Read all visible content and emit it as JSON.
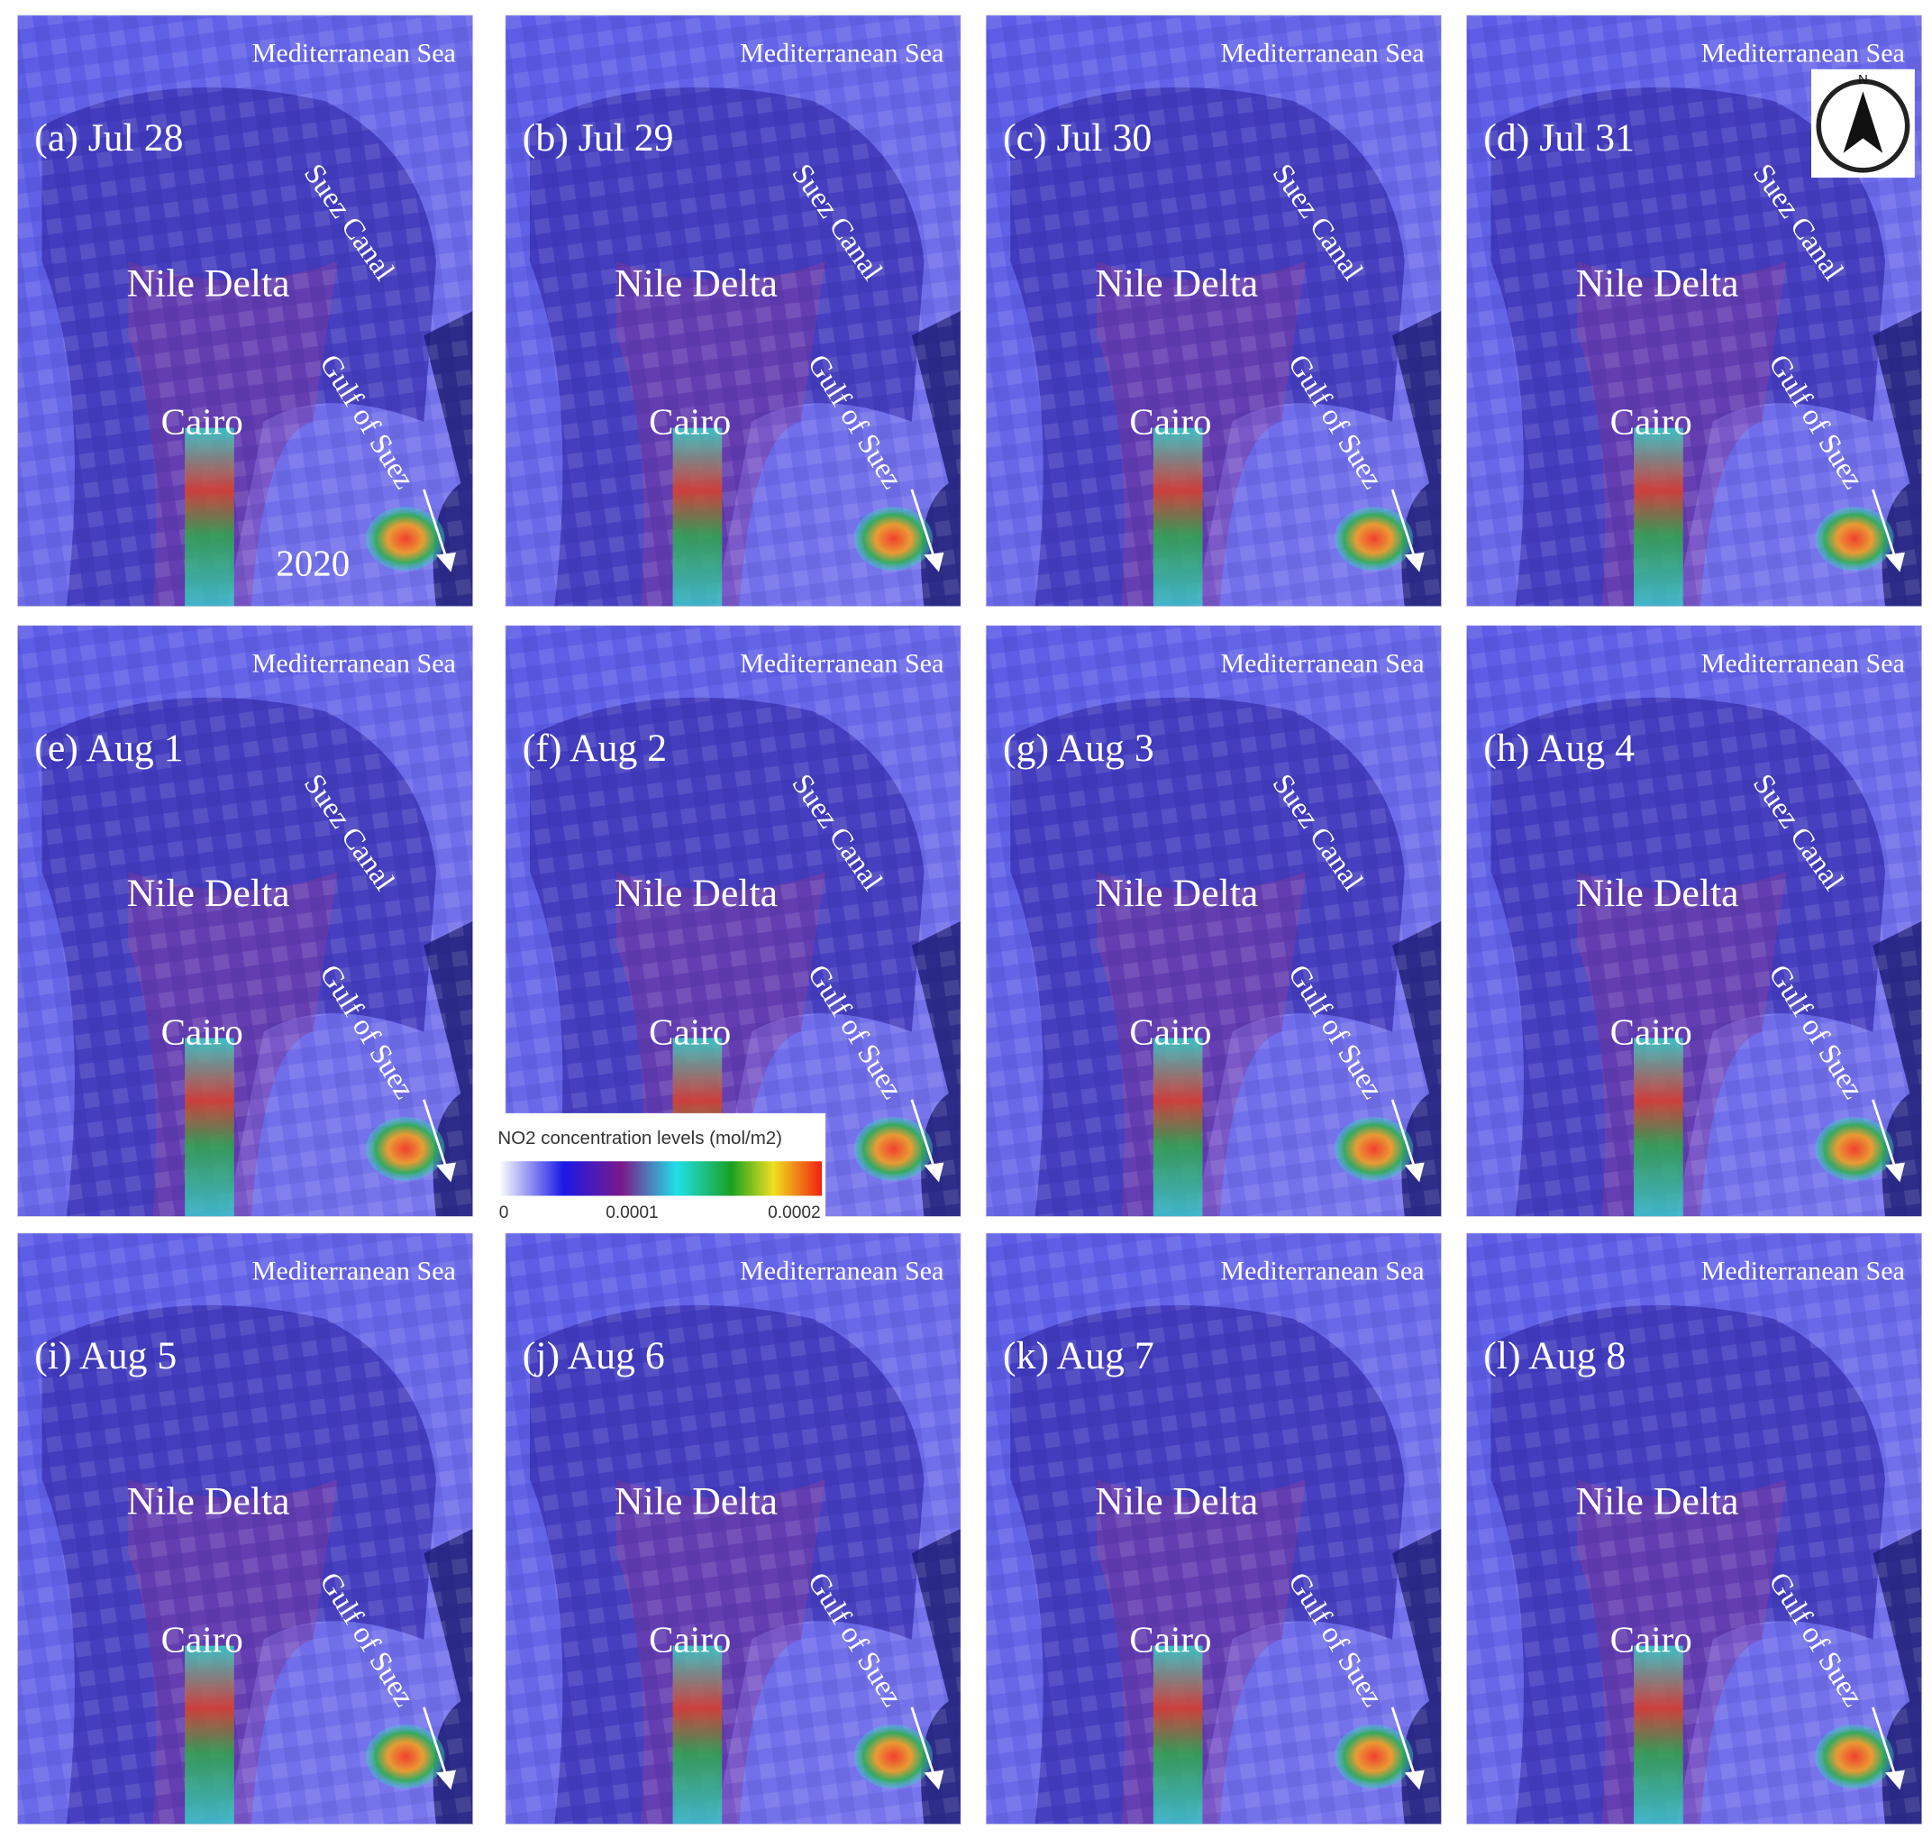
{
  "panels": [
    {
      "label": "(a) Jul 28",
      "sea": "Mediterranean Sea",
      "delta": "Nile Delta",
      "canal": "Suez Canal",
      "cairo": "Cairo",
      "gulf": "Gulf of Suez",
      "year": "2020"
    },
    {
      "label": "(b) Jul 29",
      "sea": "Mediterranean Sea",
      "delta": "Nile Delta",
      "canal": "Suez Canal",
      "cairo": "Cairo",
      "gulf": "Gulf of Suez"
    },
    {
      "label": "(c) Jul 30",
      "sea": "Mediterranean Sea",
      "delta": "Nile Delta",
      "canal": "Suez Canal",
      "cairo": "Cairo",
      "gulf": "Gulf of Suez"
    },
    {
      "label": "(d) Jul 31",
      "sea": "Mediterranean Sea",
      "delta": "Nile Delta",
      "canal": "Suez Canal",
      "cairo": "Cairo",
      "gulf": "Gulf of Suez",
      "compass": "N"
    },
    {
      "label": "(e) Aug 1",
      "sea": "Mediterranean Sea",
      "delta": "Nile Delta",
      "canal": "Suez Canal",
      "cairo": "Cairo",
      "gulf": "Gulf of Suez"
    },
    {
      "label": "(f) Aug 2",
      "sea": "Mediterranean Sea",
      "delta": "Nile Delta",
      "canal": "Suez Canal",
      "cairo": "Cairo",
      "gulf": "Gulf of Suez"
    },
    {
      "label": "(g) Aug 3",
      "sea": "Mediterranean Sea",
      "delta": "Nile Delta",
      "canal": "Suez Canal",
      "cairo": "Cairo",
      "gulf": "Gulf of Suez"
    },
    {
      "label": "(h) Aug 4",
      "sea": "Mediterranean Sea",
      "delta": "Nile Delta",
      "canal": "Suez Canal",
      "cairo": "Cairo",
      "gulf": "Gulf of Suez"
    },
    {
      "label": "(i) Aug 5",
      "sea": "Mediterranean Sea",
      "delta": "Nile Delta",
      "cairo": "Cairo",
      "gulf": "Gulf of Suez"
    },
    {
      "label": "(j) Aug 6",
      "sea": "Mediterranean Sea",
      "delta": "Nile Delta",
      "cairo": "Cairo",
      "gulf": "Gulf of Suez"
    },
    {
      "label": "(k) Aug 7",
      "sea": "Mediterranean Sea",
      "delta": "Nile Delta",
      "cairo": "Cairo",
      "gulf": "Gulf of Suez"
    },
    {
      "label": "(l) Aug 8",
      "sea": "Mediterranean Sea",
      "delta": "Nile Delta",
      "cairo": "Cairo",
      "gulf": "Gulf of Suez"
    }
  ],
  "legend": {
    "title": "NO2 concentration levels (mol/m2)",
    "ticks": [
      "0",
      "0.0001",
      "0.0002"
    ]
  }
}
